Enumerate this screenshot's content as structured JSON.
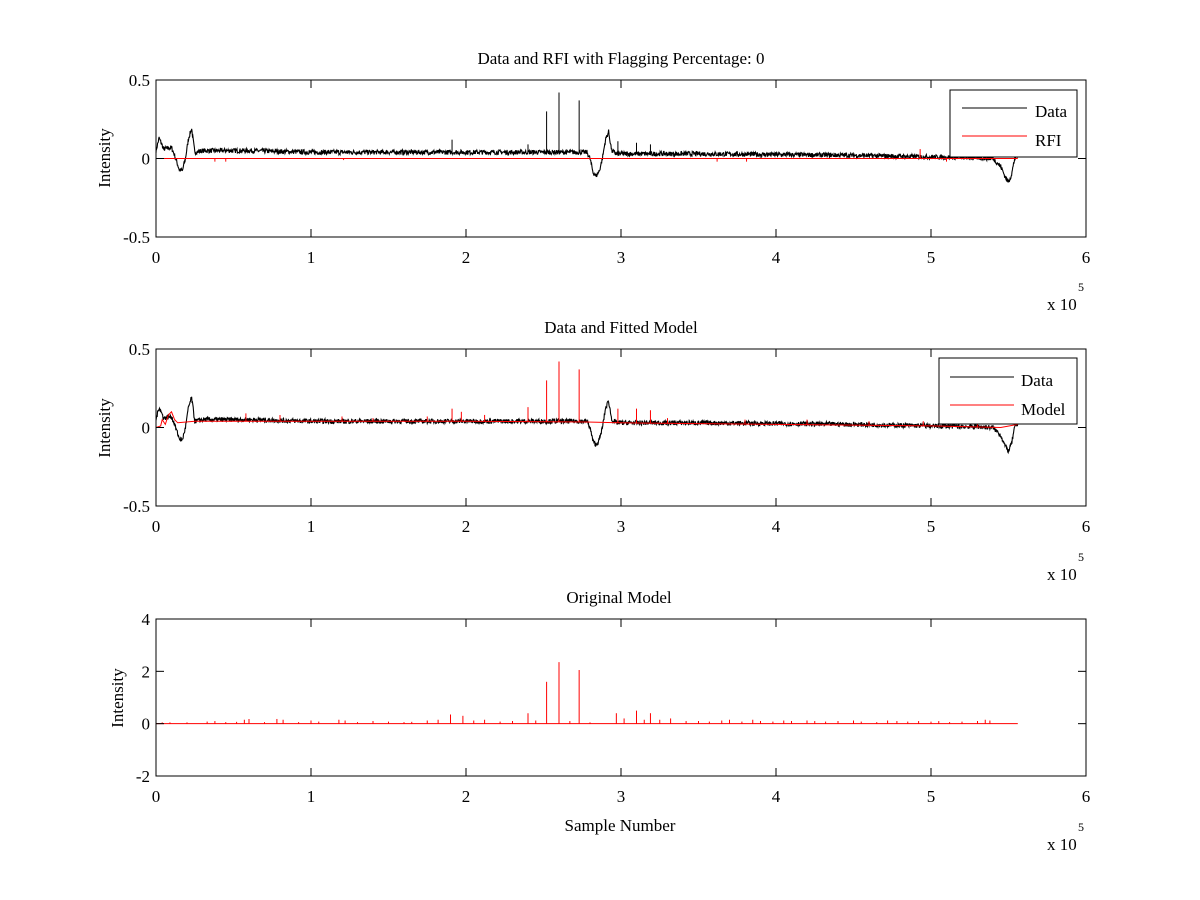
{
  "figure": {
    "background": "#ffffff",
    "data_color": "#000000",
    "rfi_color": "#ff0000"
  },
  "chart_data": [
    {
      "type": "line",
      "title": "Data and RFI with Flagging Percentage: 0",
      "xlabel": "",
      "ylabel": "Intensity",
      "xlim": [
        0,
        600000
      ],
      "ylim": [
        -0.5,
        0.5
      ],
      "xticks": [
        0,
        1,
        2,
        3,
        4,
        5,
        6
      ],
      "xtick_labels": [
        "0",
        "1",
        "2",
        "3",
        "4",
        "5",
        "6"
      ],
      "yticks": [
        -0.5,
        0,
        0.5
      ],
      "ytick_labels": [
        "-0.5",
        "0",
        "0.5"
      ],
      "x_multiplier": {
        "base": "x 10",
        "exponent": "5"
      },
      "legend": {
        "position": "top-right",
        "entries": [
          "Data",
          "RFI"
        ]
      },
      "series": [
        {
          "name": "Data",
          "color": "#000000",
          "x": [
            0,
            2000,
            5000,
            10000,
            12000,
            15000,
            17000,
            19000,
            21000,
            23000,
            25000,
            30000,
            60000,
            100000,
            150000,
            200000,
            250000,
            278000,
            280000,
            282000,
            284000,
            286000,
            288000,
            290000,
            292000,
            294000,
            297000,
            300000,
            350000,
            400000,
            450000,
            500000,
            530000,
            540000,
            545000,
            548000,
            550000,
            552000,
            554000,
            556000
          ],
          "y": [
            0.05,
            0.13,
            0.06,
            0.07,
            0.02,
            -0.07,
            -0.08,
            0.0,
            0.13,
            0.19,
            0.04,
            0.05,
            0.05,
            0.04,
            0.04,
            0.04,
            0.04,
            0.04,
            0.0,
            -0.09,
            -0.11,
            -0.08,
            0.0,
            0.12,
            0.17,
            0.05,
            0.03,
            0.03,
            0.03,
            0.025,
            0.02,
            0.01,
            0.005,
            0.0,
            -0.05,
            -0.12,
            -0.15,
            -0.1,
            0.0,
            0.02
          ],
          "noise_amplitude": 0.015,
          "spikes": [
            {
              "x": 252000,
              "y": 0.3
            },
            {
              "x": 260000,
              "y": 0.42
            },
            {
              "x": 273000,
              "y": 0.37
            },
            {
              "x": 191000,
              "y": 0.12
            },
            {
              "x": 240000,
              "y": 0.09
            },
            {
              "x": 298000,
              "y": 0.11
            },
            {
              "x": 310000,
              "y": 0.1
            },
            {
              "x": 319000,
              "y": 0.09
            }
          ]
        },
        {
          "name": "RFI",
          "color": "#ff0000",
          "x": [
            0,
            556000
          ],
          "y": [
            0,
            0
          ],
          "spikes": [
            {
              "x": 38000,
              "y": -0.02
            },
            {
              "x": 45000,
              "y": -0.02
            },
            {
              "x": 121000,
              "y": -0.01
            },
            {
              "x": 362000,
              "y": -0.02
            },
            {
              "x": 381000,
              "y": -0.02
            },
            {
              "x": 493000,
              "y": 0.06
            },
            {
              "x": 510000,
              "y": -0.02
            }
          ]
        }
      ]
    },
    {
      "type": "line",
      "title": "Data and Fitted Model",
      "xlabel": "",
      "ylabel": "Intensity",
      "xlim": [
        0,
        600000
      ],
      "ylim": [
        -0.5,
        0.5
      ],
      "xticks": [
        0,
        1,
        2,
        3,
        4,
        5,
        6
      ],
      "xtick_labels": [
        "0",
        "1",
        "2",
        "3",
        "4",
        "5",
        "6"
      ],
      "yticks": [
        -0.5,
        0,
        0.5
      ],
      "ytick_labels": [
        "-0.5",
        "0",
        "0.5"
      ],
      "x_multiplier": {
        "base": "x 10",
        "exponent": "5"
      },
      "legend": {
        "position": "top-right",
        "entries": [
          "Data",
          "Model"
        ]
      },
      "series": [
        {
          "name": "Data",
          "color": "#000000",
          "x": [
            0,
            2000,
            5000,
            10000,
            12000,
            15000,
            17000,
            19000,
            21000,
            23000,
            25000,
            30000,
            60000,
            100000,
            150000,
            200000,
            250000,
            278000,
            280000,
            282000,
            284000,
            286000,
            288000,
            290000,
            292000,
            294000,
            297000,
            300000,
            350000,
            400000,
            450000,
            500000,
            530000,
            540000,
            545000,
            548000,
            550000,
            552000,
            554000,
            556000
          ],
          "y": [
            0.05,
            0.13,
            0.06,
            0.07,
            0.02,
            -0.07,
            -0.08,
            0.0,
            0.13,
            0.19,
            0.04,
            0.05,
            0.05,
            0.04,
            0.04,
            0.04,
            0.04,
            0.04,
            0.0,
            -0.09,
            -0.11,
            -0.08,
            0.0,
            0.12,
            0.17,
            0.05,
            0.03,
            0.03,
            0.03,
            0.025,
            0.02,
            0.01,
            0.005,
            0.0,
            -0.05,
            -0.12,
            -0.15,
            -0.1,
            0.0,
            0.02
          ],
          "noise_amplitude": 0.015
        },
        {
          "name": "Model",
          "color": "#ff0000",
          "x": [
            0,
            3000,
            4000,
            6000,
            8000,
            10000,
            12000,
            14000,
            25000,
            100000,
            200000,
            278000,
            298000,
            350000,
            400000,
            450000,
            500000,
            545000,
            556000
          ],
          "y": [
            0.0,
            0.01,
            0.05,
            0.02,
            0.08,
            0.1,
            0.05,
            0.03,
            0.04,
            0.04,
            0.04,
            0.035,
            0.03,
            0.025,
            0.02,
            0.015,
            0.01,
            0.0,
            0.02
          ],
          "spikes": [
            {
              "x": 252000,
              "y": 0.3
            },
            {
              "x": 260000,
              "y": 0.42
            },
            {
              "x": 273000,
              "y": 0.37
            },
            {
              "x": 240000,
              "y": 0.13
            },
            {
              "x": 191000,
              "y": 0.12
            },
            {
              "x": 197000,
              "y": 0.1
            },
            {
              "x": 298000,
              "y": 0.12
            },
            {
              "x": 310000,
              "y": 0.12
            },
            {
              "x": 319000,
              "y": 0.11
            },
            {
              "x": 58000,
              "y": 0.09
            },
            {
              "x": 80000,
              "y": 0.08
            },
            {
              "x": 120000,
              "y": 0.07
            },
            {
              "x": 140000,
              "y": 0.06
            },
            {
              "x": 175000,
              "y": 0.07
            },
            {
              "x": 212000,
              "y": 0.08
            },
            {
              "x": 330000,
              "y": 0.06
            },
            {
              "x": 380000,
              "y": 0.05
            },
            {
              "x": 420000,
              "y": 0.05
            },
            {
              "x": 460000,
              "y": 0.04
            },
            {
              "x": 495000,
              "y": 0.04
            },
            {
              "x": 530000,
              "y": 0.03
            }
          ]
        }
      ]
    },
    {
      "type": "line",
      "title": "Original Model",
      "xlabel": "Sample Number",
      "ylabel": "Intensity",
      "xlim": [
        0,
        600000
      ],
      "ylim": [
        -2,
        4
      ],
      "xticks": [
        0,
        1,
        2,
        3,
        4,
        5,
        6
      ],
      "xtick_labels": [
        "0",
        "1",
        "2",
        "3",
        "4",
        "5",
        "6"
      ],
      "yticks": [
        -2,
        0,
        2,
        4
      ],
      "ytick_labels": [
        "-2",
        "0",
        "2",
        "4"
      ],
      "x_multiplier": {
        "base": "x 10",
        "exponent": "5"
      },
      "series": [
        {
          "name": "Model",
          "color": "#ff0000",
          "x": [
            0,
            556000
          ],
          "y": [
            0,
            0
          ],
          "spikes": [
            {
              "x": 4000,
              "y": 0.05
            },
            {
              "x": 9000,
              "y": 0.05
            },
            {
              "x": 20000,
              "y": 0.05
            },
            {
              "x": 33000,
              "y": 0.08
            },
            {
              "x": 38000,
              "y": 0.1
            },
            {
              "x": 45000,
              "y": 0.06
            },
            {
              "x": 52000,
              "y": 0.07
            },
            {
              "x": 57000,
              "y": 0.15
            },
            {
              "x": 60000,
              "y": 0.18
            },
            {
              "x": 70000,
              "y": 0.06
            },
            {
              "x": 78000,
              "y": 0.18
            },
            {
              "x": 82000,
              "y": 0.15
            },
            {
              "x": 92000,
              "y": 0.06
            },
            {
              "x": 100000,
              "y": 0.12
            },
            {
              "x": 105000,
              "y": 0.08
            },
            {
              "x": 118000,
              "y": 0.15
            },
            {
              "x": 122000,
              "y": 0.12
            },
            {
              "x": 130000,
              "y": 0.06
            },
            {
              "x": 140000,
              "y": 0.1
            },
            {
              "x": 150000,
              "y": 0.08
            },
            {
              "x": 160000,
              "y": 0.06
            },
            {
              "x": 165000,
              "y": 0.07
            },
            {
              "x": 175000,
              "y": 0.12
            },
            {
              "x": 182000,
              "y": 0.15
            },
            {
              "x": 190000,
              "y": 0.35
            },
            {
              "x": 198000,
              "y": 0.3
            },
            {
              "x": 205000,
              "y": 0.12
            },
            {
              "x": 212000,
              "y": 0.15
            },
            {
              "x": 222000,
              "y": 0.08
            },
            {
              "x": 230000,
              "y": 0.1
            },
            {
              "x": 240000,
              "y": 0.4
            },
            {
              "x": 245000,
              "y": 0.12
            },
            {
              "x": 252000,
              "y": 1.6
            },
            {
              "x": 260000,
              "y": 2.35
            },
            {
              "x": 267000,
              "y": 0.1
            },
            {
              "x": 273000,
              "y": 2.05
            },
            {
              "x": 280000,
              "y": 0.05
            },
            {
              "x": 297000,
              "y": 0.4
            },
            {
              "x": 302000,
              "y": 0.2
            },
            {
              "x": 310000,
              "y": 0.5
            },
            {
              "x": 315000,
              "y": 0.15
            },
            {
              "x": 319000,
              "y": 0.4
            },
            {
              "x": 325000,
              "y": 0.15
            },
            {
              "x": 332000,
              "y": 0.2
            },
            {
              "x": 342000,
              "y": 0.1
            },
            {
              "x": 350000,
              "y": 0.1
            },
            {
              "x": 357000,
              "y": 0.08
            },
            {
              "x": 365000,
              "y": 0.12
            },
            {
              "x": 370000,
              "y": 0.15
            },
            {
              "x": 378000,
              "y": 0.08
            },
            {
              "x": 385000,
              "y": 0.15
            },
            {
              "x": 390000,
              "y": 0.1
            },
            {
              "x": 398000,
              "y": 0.08
            },
            {
              "x": 405000,
              "y": 0.12
            },
            {
              "x": 410000,
              "y": 0.1
            },
            {
              "x": 420000,
              "y": 0.12
            },
            {
              "x": 425000,
              "y": 0.1
            },
            {
              "x": 432000,
              "y": 0.08
            },
            {
              "x": 440000,
              "y": 0.1
            },
            {
              "x": 450000,
              "y": 0.12
            },
            {
              "x": 455000,
              "y": 0.08
            },
            {
              "x": 465000,
              "y": 0.06
            },
            {
              "x": 472000,
              "y": 0.12
            },
            {
              "x": 478000,
              "y": 0.1
            },
            {
              "x": 485000,
              "y": 0.08
            },
            {
              "x": 492000,
              "y": 0.1
            },
            {
              "x": 500000,
              "y": 0.08
            },
            {
              "x": 505000,
              "y": 0.1
            },
            {
              "x": 512000,
              "y": 0.06
            },
            {
              "x": 520000,
              "y": 0.08
            },
            {
              "x": 530000,
              "y": 0.1
            },
            {
              "x": 535000,
              "y": 0.15
            },
            {
              "x": 538000,
              "y": 0.12
            }
          ]
        }
      ]
    }
  ]
}
